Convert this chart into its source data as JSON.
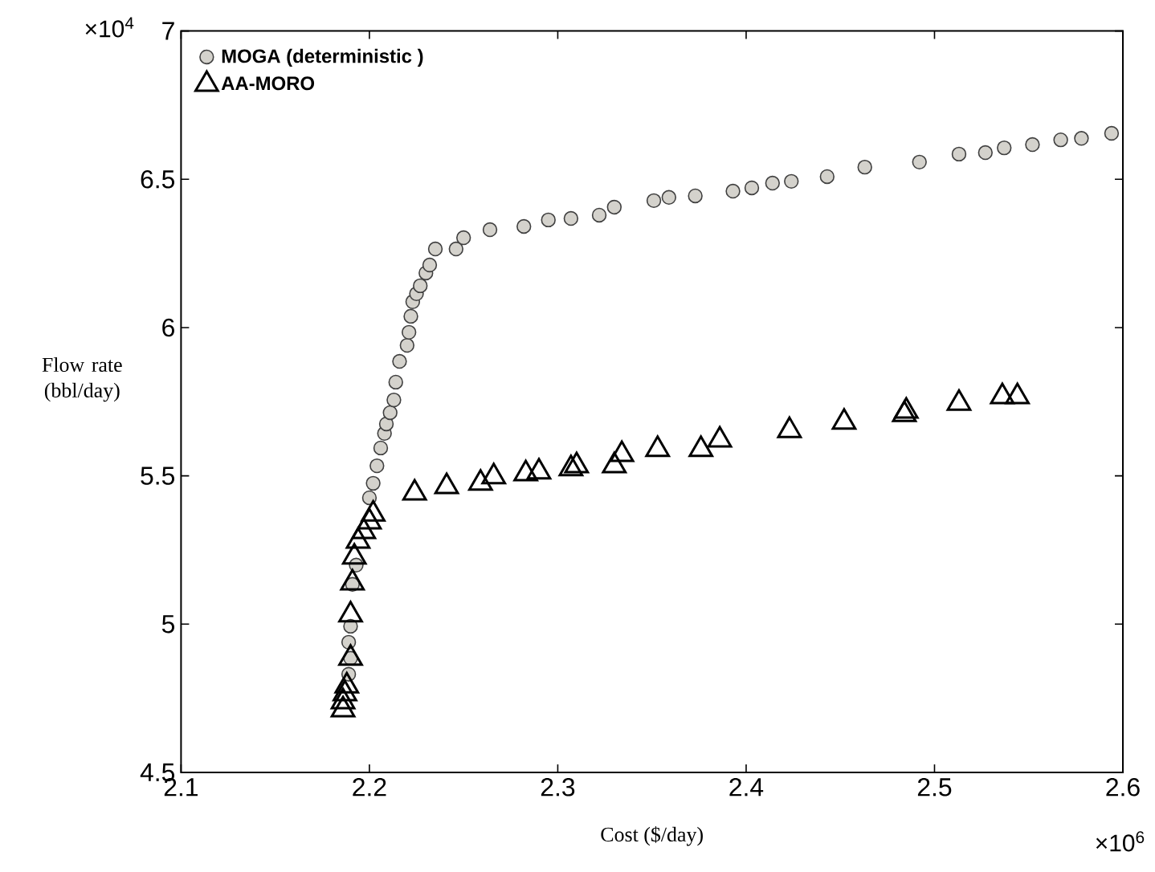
{
  "chart_data": {
    "type": "scatter",
    "xlabel": "Cost ($/day)",
    "ylabel": "Flow rate (bbl/day)",
    "xlim": [
      2.1,
      2.6
    ],
    "ylim": [
      4.5,
      7
    ],
    "xticks": [
      2.1,
      2.2,
      2.3,
      2.4,
      2.5,
      2.6
    ],
    "yticks": [
      4.5,
      5,
      5.5,
      6,
      6.5,
      7
    ],
    "grid": false,
    "legend": "top left",
    "annotations": [
      "×10$^{4}$",
      "×10$^{6}$"
    ],
    "series": [
      {
        "name": "MOGA (deterministic )",
        "color": "#d4d2cc",
        "marker": "circle",
        "x": [
          2.189,
          2.19,
          2.189,
          2.19,
          2.191,
          2.193,
          2.199,
          2.2,
          2.202,
          2.204,
          2.206,
          2.208,
          2.209,
          2.211,
          2.213,
          2.214,
          2.216,
          2.218,
          2.22,
          2.221,
          2.222,
          2.223,
          2.225,
          2.227,
          2.23,
          2.232,
          2.235,
          2.246,
          2.25,
          2.264,
          2.282,
          2.295,
          2.307,
          2.322,
          2.33,
          2.351,
          2.359,
          2.373,
          2.393,
          2.403,
          2.414,
          2.424,
          2.443,
          2.463,
          2.492,
          2.513,
          2.527,
          2.537,
          2.552,
          2.567,
          2.578,
          2.594
        ],
        "values": [
          4.831,
          4.885,
          4.939,
          4.993,
          5.134,
          5.199,
          null,
          5.426,
          5.475,
          5.534,
          5.594,
          5.643,
          5.675,
          5.713,
          5.756,
          5.816,
          5.886,
          null,
          5.94,
          5.984,
          6.038,
          6.087,
          6.114,
          6.141,
          6.184,
          6.211,
          6.265,
          6.265,
          6.303,
          6.33,
          6.341,
          6.363,
          6.368,
          6.379,
          6.406,
          6.428,
          6.439,
          6.444,
          6.46,
          6.471,
          6.487,
          6.493,
          6.509,
          6.541,
          6.558,
          6.585,
          6.59,
          6.606,
          6.617,
          6.633,
          6.638,
          6.655
        ]
      },
      {
        "name": "AA-MORO",
        "color": "#000000",
        "marker": "triangle",
        "x": [
          2.186,
          2.186,
          2.187,
          2.188,
          2.19,
          2.19,
          2.191,
          2.192,
          2.194,
          2.197,
          2.2,
          2.202,
          2.224,
          2.241,
          2.259,
          2.266,
          2.283,
          2.29,
          2.307,
          2.31,
          2.33,
          2.334,
          2.353,
          2.376,
          2.386,
          2.423,
          2.452,
          2.484,
          2.485,
          2.513,
          2.536,
          2.544
        ],
        "values": [
          4.711,
          4.738,
          4.765,
          4.792,
          4.885,
          5.031,
          5.139,
          5.226,
          5.28,
          5.312,
          5.345,
          5.371,
          5.442,
          5.464,
          5.475,
          5.497,
          5.507,
          5.513,
          5.524,
          5.534,
          5.534,
          5.572,
          5.589,
          5.589,
          5.621,
          5.653,
          5.681,
          5.707,
          5.718,
          5.745,
          5.767,
          5.767
        ]
      }
    ]
  }
}
